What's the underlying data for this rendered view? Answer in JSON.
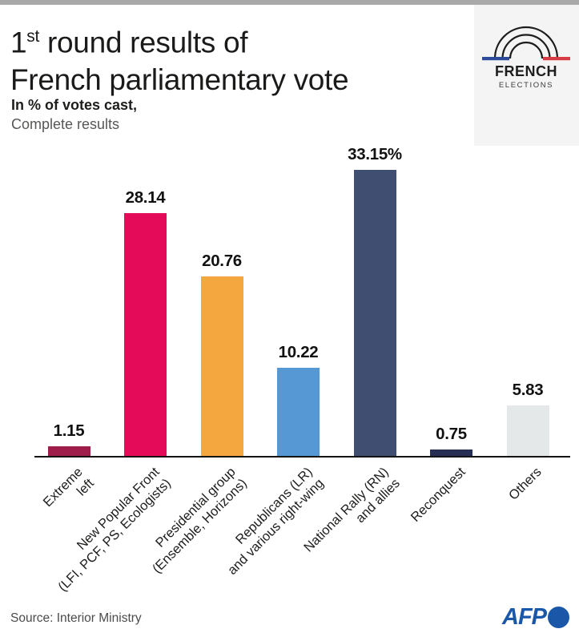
{
  "header": {
    "title_num": "1",
    "title_sup": "st",
    "title_rest": " round results of",
    "title_line2": "French parliamentary vote",
    "subtitle_bold": "In % of votes cast,",
    "subtitle_light": "Complete results"
  },
  "logo": {
    "line1": "FRENCH",
    "line2": "ELECTIONS",
    "flag_blue": "#2b4a99",
    "flag_red": "#d93b45",
    "arc_color": "#1d1d1b"
  },
  "chart_data": {
    "type": "bar",
    "title": "1st round results of French parliamentary vote",
    "subtitle": "In % of votes cast, Complete results",
    "categories": [
      "Extreme\nleft",
      "New Popular Front\n(LFI, PCF, PS, Ecologists)",
      "Presidential group\n(Ensemble, Horizons)",
      "Republicans (LR)\nand various right-wing",
      "National Rally (RN)\nand allies",
      "Reconquest",
      "Others"
    ],
    "values": [
      1.15,
      28.14,
      20.76,
      10.22,
      33.15,
      0.75,
      5.83
    ],
    "value_labels": [
      "1.15",
      "28.14",
      "20.76",
      "10.22",
      "33.15%",
      "0.75",
      "5.83"
    ],
    "bar_colors": [
      "#9e1d4b",
      "#e40c59",
      "#f4a73f",
      "#5598d3",
      "#3f4e71",
      "#262e55",
      "#e5e8e9"
    ],
    "xlabel": "",
    "ylabel": "",
    "ylim": [
      0,
      35
    ],
    "grid": false,
    "legend": false,
    "axis_color": "#141414"
  },
  "footer": {
    "source": "Source: Interior Ministry",
    "afp": "AFP",
    "afp_color": "#1b57a8"
  }
}
